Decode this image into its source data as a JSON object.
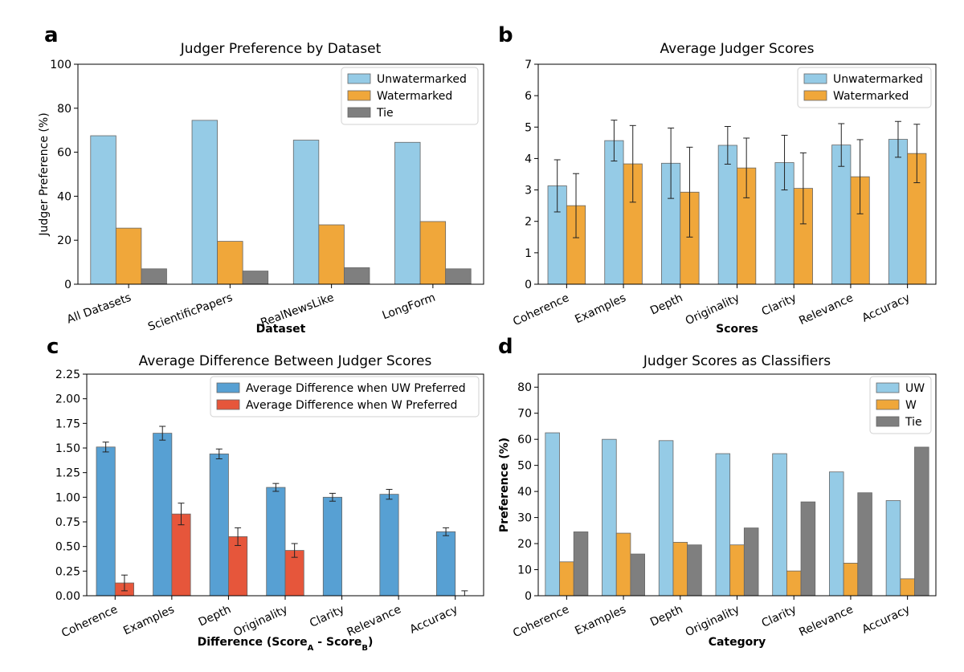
{
  "chart_data": [
    {
      "panel": "a",
      "type": "bar",
      "title": "Judger Preference by Dataset",
      "xlabel": "Dataset",
      "ylabel": "Judger Preference (%)",
      "ylim": [
        0,
        100
      ],
      "yticks": [
        "0",
        "20",
        "40",
        "60",
        "80",
        "100"
      ],
      "categories": [
        "All Datasets",
        "ScientificPapers",
        "RealNewsLike",
        "LongForm"
      ],
      "series": [
        {
          "name": "Unwatermarked",
          "color": "#95cbe6",
          "values": [
            67.5,
            74.5,
            65.5,
            64.5
          ]
        },
        {
          "name": "Watermarked",
          "color": "#f0a73a",
          "values": [
            25.5,
            19.5,
            27,
            28.5
          ]
        },
        {
          "name": "Tie",
          "color": "#7f7f7f",
          "values": [
            7,
            6,
            7.5,
            7
          ]
        }
      ],
      "legend": "top-right"
    },
    {
      "panel": "b",
      "type": "bar",
      "title": "Average Judger Scores",
      "xlabel": "Scores",
      "ylabel": "",
      "ylim": [
        0,
        7
      ],
      "yticks": [
        "0",
        "1",
        "2",
        "3",
        "4",
        "5",
        "6",
        "7"
      ],
      "categories": [
        "Coherence",
        "Examples",
        "Depth",
        "Originality",
        "Clarity",
        "Relevance",
        "Accuracy"
      ],
      "series": [
        {
          "name": "Unwatermarked",
          "color": "#95cbe6",
          "values": [
            3.13,
            4.57,
            3.85,
            4.42,
            3.87,
            4.43,
            4.61
          ],
          "errors": [
            0.83,
            0.65,
            1.12,
            0.6,
            0.87,
            0.68,
            0.57
          ]
        },
        {
          "name": "Watermarked",
          "color": "#f0a73a",
          "values": [
            2.5,
            3.83,
            2.93,
            3.7,
            3.05,
            3.42,
            4.16
          ],
          "errors": [
            1.02,
            1.22,
            1.43,
            0.95,
            1.13,
            1.18,
            0.93
          ]
        }
      ],
      "legend": "top-right"
    },
    {
      "panel": "c",
      "type": "bar",
      "title": "Average Difference Between Judger Scores",
      "xlabel_main": "Difference (Score",
      "xlabel_sub1": "A",
      "xlabel_mid": " - Score",
      "xlabel_sub2": "B",
      "xlabel_end": ")",
      "ylabel": "",
      "ylim": [
        0,
        2.25
      ],
      "yticks": [
        "0.00",
        "0.25",
        "0.50",
        "0.75",
        "1.00",
        "1.25",
        "1.50",
        "1.75",
        "2.00",
        "2.25"
      ],
      "categories": [
        "Coherence",
        "Examples",
        "Depth",
        "Originality",
        "Clarity",
        "Relevance",
        "Accuracy"
      ],
      "series": [
        {
          "name": "Average Difference when UW Preferred",
          "color": "#57a0d3",
          "values": [
            1.51,
            1.65,
            1.44,
            1.1,
            1.0,
            1.03,
            0.65
          ],
          "errors": [
            0.05,
            0.07,
            0.05,
            0.04,
            0.04,
            0.05,
            0.04
          ]
        },
        {
          "name": "Average Difference when W Preferred",
          "color": "#e6563b",
          "values": [
            0.13,
            0.83,
            0.6,
            0.46,
            0.0,
            0.0,
            0.0
          ],
          "errors": [
            0.08,
            0.11,
            0.09,
            0.07,
            0,
            0,
            0.05
          ]
        }
      ],
      "legend": "top-right"
    },
    {
      "panel": "d",
      "type": "bar",
      "title": "Judger Scores as Classifiers",
      "xlabel": "Category",
      "ylabel": "Preference (%)",
      "ylim": [
        0,
        85
      ],
      "yticks": [
        "0",
        "10",
        "20",
        "30",
        "40",
        "50",
        "60",
        "70",
        "80"
      ],
      "categories": [
        "Coherence",
        "Examples",
        "Depth",
        "Originality",
        "Clarity",
        "Relevance",
        "Accuracy"
      ],
      "series": [
        {
          "name": "UW",
          "color": "#95cbe6",
          "values": [
            62.5,
            60,
            59.5,
            54.5,
            54.5,
            47.5,
            36.5
          ]
        },
        {
          "name": "W",
          "color": "#f0a73a",
          "values": [
            13,
            24,
            20.5,
            19.5,
            9.5,
            12.5,
            6.5
          ]
        },
        {
          "name": "Tie",
          "color": "#7f7f7f",
          "values": [
            24.5,
            16,
            19.5,
            26,
            36,
            39.5,
            57
          ]
        }
      ],
      "legend": "top-right"
    }
  ]
}
